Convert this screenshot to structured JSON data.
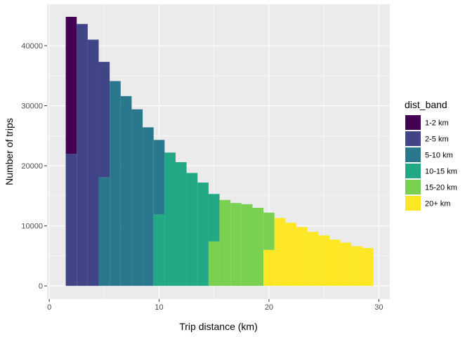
{
  "chart_data": {
    "type": "bar",
    "stacked": true,
    "xlabel": "Trip distance (km)",
    "ylabel": "Number of trips",
    "xlim": [
      -0.2,
      31.0
    ],
    "ylim": [
      -2200,
      46900
    ],
    "x_ticks": [
      0,
      10,
      20,
      30
    ],
    "y_ticks": [
      0,
      10000,
      20000,
      30000,
      40000
    ],
    "x_tick_labels": [
      "0",
      "10",
      "20",
      "30"
    ],
    "y_tick_labels": [
      "0",
      "10000",
      "20000",
      "30000",
      "40000"
    ],
    "grid": true,
    "bar_width": 1,
    "legend": {
      "title": "dist_band",
      "position": "right"
    },
    "x": [
      2,
      3,
      4,
      5,
      6,
      7,
      8,
      9,
      10,
      11,
      12,
      13,
      14,
      15,
      16,
      17,
      18,
      19,
      20,
      21,
      22,
      23,
      24,
      25,
      26,
      27,
      28,
      29
    ],
    "series": [
      {
        "name": "1-2 km",
        "color": "#440154",
        "values": [
          22800,
          0,
          0,
          0,
          0,
          0,
          0,
          0,
          0,
          0,
          0,
          0,
          0,
          0,
          0,
          0,
          0,
          0,
          0,
          0,
          0,
          0,
          0,
          0,
          0,
          0,
          0,
          0
        ]
      },
      {
        "name": "2-5 km",
        "color": "#414487",
        "values": [
          22000,
          43600,
          41000,
          19200,
          0,
          0,
          0,
          0,
          0,
          0,
          0,
          0,
          0,
          0,
          0,
          0,
          0,
          0,
          0,
          0,
          0,
          0,
          0,
          0,
          0,
          0,
          0,
          0
        ]
      },
      {
        "name": "5-10 km",
        "color": "#2a788e",
        "values": [
          0,
          0,
          0,
          18100,
          34100,
          31600,
          29400,
          26400,
          12400,
          0,
          0,
          0,
          0,
          0,
          0,
          0,
          0,
          0,
          0,
          0,
          0,
          0,
          0,
          0,
          0,
          0,
          0,
          0
        ]
      },
      {
        "name": "10-15 km",
        "color": "#22a884",
        "values": [
          0,
          0,
          0,
          0,
          0,
          0,
          0,
          0,
          11900,
          22200,
          20600,
          18800,
          17200,
          7900,
          0,
          0,
          0,
          0,
          0,
          0,
          0,
          0,
          0,
          0,
          0,
          0,
          0,
          0
        ]
      },
      {
        "name": "15-20 km",
        "color": "#7ad151",
        "values": [
          0,
          0,
          0,
          0,
          0,
          0,
          0,
          0,
          0,
          0,
          0,
          0,
          0,
          7400,
          14300,
          13800,
          13600,
          13000,
          6200,
          0,
          0,
          0,
          0,
          0,
          0,
          0,
          0,
          0
        ]
      },
      {
        "name": "20+ km",
        "color": "#fde725",
        "values": [
          0,
          0,
          0,
          0,
          0,
          0,
          0,
          0,
          0,
          0,
          0,
          0,
          0,
          0,
          0,
          0,
          0,
          0,
          6000,
          11300,
          10500,
          9800,
          9000,
          8400,
          7700,
          7200,
          6600,
          6300
        ]
      }
    ]
  }
}
